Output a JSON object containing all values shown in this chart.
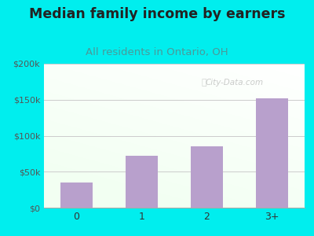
{
  "categories": [
    "0",
    "1",
    "2",
    "3+"
  ],
  "values": [
    35000,
    72000,
    85000,
    152000
  ],
  "bar_color": "#b8a0cc",
  "title": "Median family income by earners",
  "subtitle": "All residents in Ontario, OH",
  "title_fontsize": 12.5,
  "subtitle_fontsize": 9.5,
  "title_color": "#222222",
  "subtitle_color": "#4a9a9a",
  "background_color": "#00EEEE",
  "ylim": [
    0,
    200000
  ],
  "yticks": [
    0,
    50000,
    100000,
    150000,
    200000
  ],
  "ytick_labels": [
    "$0",
    "$50k",
    "$100k",
    "$150k",
    "$200k"
  ],
  "grid_color": "#cccccc",
  "watermark": "City-Data.com"
}
